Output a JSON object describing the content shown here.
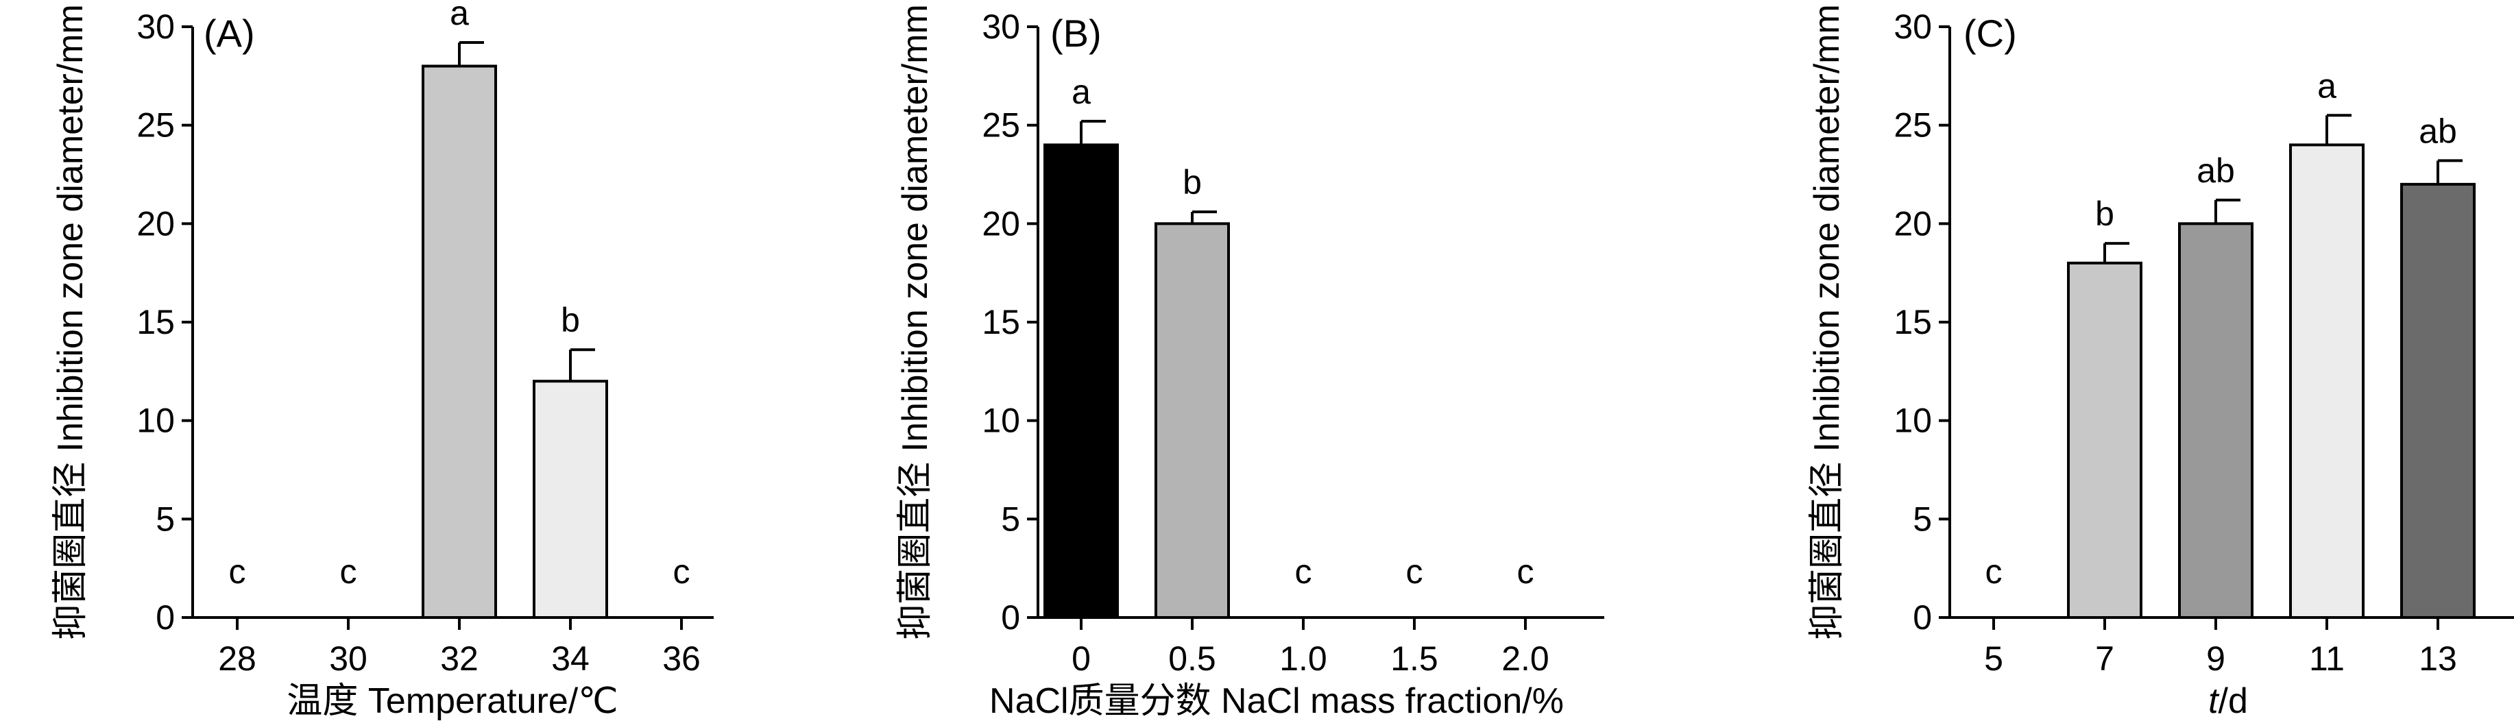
{
  "chart_data": [
    {
      "type": "bar",
      "panel_label": "(A)",
      "categories": [
        "28",
        "30",
        "32",
        "34",
        "36"
      ],
      "values": [
        0,
        0,
        28,
        12,
        0
      ],
      "errors": [
        0,
        0,
        1.2,
        1.6,
        0
      ],
      "significance": [
        "c",
        "c",
        "a",
        "b",
        "c"
      ],
      "bar_colors": [
        "#c8c8c8",
        "#c8c8c8",
        "#c8c8c8",
        "#ececec",
        "#c8c8c8"
      ],
      "xlabel": "温度 Temperature/℃",
      "ylabel": "抑菌圈直径 Inhibition zone diameter/mm",
      "ylim": [
        0,
        30
      ],
      "yticks": [
        "0",
        "5",
        "10",
        "15",
        "20",
        "25",
        "30"
      ],
      "grid": false
    },
    {
      "type": "bar",
      "panel_label": "(B)",
      "categories": [
        "0",
        "0.5",
        "1.0",
        "1.5",
        "2.0"
      ],
      "values": [
        24,
        20,
        0,
        0,
        0
      ],
      "errors": [
        1.2,
        0.6,
        0,
        0,
        0
      ],
      "significance": [
        "a",
        "b",
        "c",
        "c",
        "c"
      ],
      "bar_colors": [
        "#000000",
        "#b4b4b4",
        "#b4b4b4",
        "#b4b4b4",
        "#b4b4b4"
      ],
      "xlabel": "NaCl质量分数 NaCl mass fraction/%",
      "ylabel": "抑菌圈直径 Inhibition zone diameter/mm",
      "ylim": [
        0,
        30
      ],
      "yticks": [
        "0",
        "5",
        "10",
        "15",
        "20",
        "25",
        "30"
      ],
      "grid": false
    },
    {
      "type": "bar",
      "panel_label": "(C)",
      "categories": [
        "5",
        "7",
        "9",
        "11",
        "13"
      ],
      "values": [
        0,
        18,
        20,
        24,
        22
      ],
      "errors": [
        0,
        1.0,
        1.2,
        1.5,
        1.2
      ],
      "significance": [
        "c",
        "b",
        "ab",
        "a",
        "ab"
      ],
      "bar_colors": [
        "#c8c8c8",
        "#c8c8c8",
        "#999999",
        "#ececec",
        "#6b6b6b"
      ],
      "xlabel_italic": "t",
      "xlabel_rest": "/d",
      "ylabel": "抑菌圈直径 Inhibition zone diameter/mm",
      "ylim": [
        0,
        30
      ],
      "yticks": [
        "0",
        "5",
        "10",
        "15",
        "20",
        "25",
        "30"
      ],
      "grid": false
    }
  ]
}
